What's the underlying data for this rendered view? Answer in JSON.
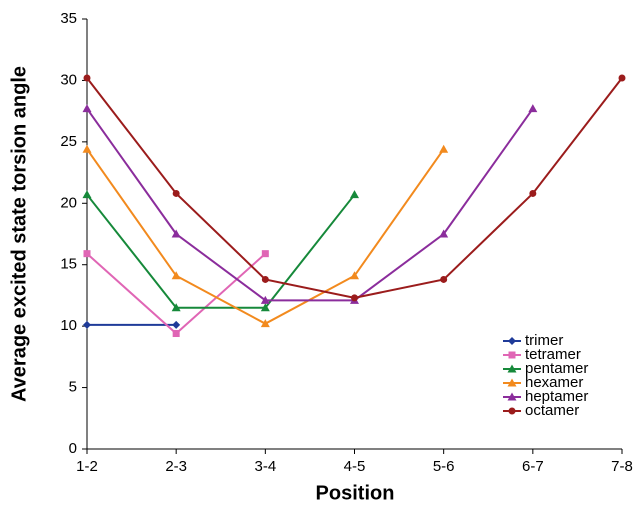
{
  "chart_data": {
    "type": "line",
    "x_label": "Position",
    "y_label": "Average excited state torsion angle",
    "categories": [
      "1-2",
      "2-3",
      "3-4",
      "4-5",
      "5-6",
      "6-7",
      "7-8"
    ],
    "ylim": [
      0,
      35
    ],
    "yticks": [
      0,
      5,
      10,
      15,
      20,
      25,
      30,
      35
    ],
    "grid": false,
    "legend": "lower right",
    "series": [
      {
        "name": "trimer",
        "color": "#1f3b99",
        "marker": "diamond",
        "values": [
          10.1,
          10.1,
          null,
          null,
          null,
          null,
          null
        ]
      },
      {
        "name": "tetramer",
        "color": "#e066b5",
        "marker": "square",
        "values": [
          15.9,
          9.4,
          15.9,
          null,
          null,
          null,
          null
        ]
      },
      {
        "name": "pentamer",
        "color": "#16893a",
        "marker": "triangle",
        "values": [
          20.7,
          11.5,
          11.5,
          20.7,
          null,
          null,
          null
        ]
      },
      {
        "name": "hexamer",
        "color": "#f28a1e",
        "marker": "triangle",
        "values": [
          24.4,
          14.1,
          10.2,
          14.1,
          24.4,
          null,
          null
        ]
      },
      {
        "name": "heptamer",
        "color": "#8b2d9c",
        "marker": "triangle",
        "values": [
          27.7,
          17.5,
          12.1,
          12.1,
          17.5,
          27.7,
          null
        ]
      },
      {
        "name": "octamer",
        "color": "#9b1c1c",
        "marker": "circle",
        "values": [
          30.2,
          20.8,
          13.8,
          12.3,
          13.8,
          20.8,
          30.2
        ]
      }
    ]
  }
}
